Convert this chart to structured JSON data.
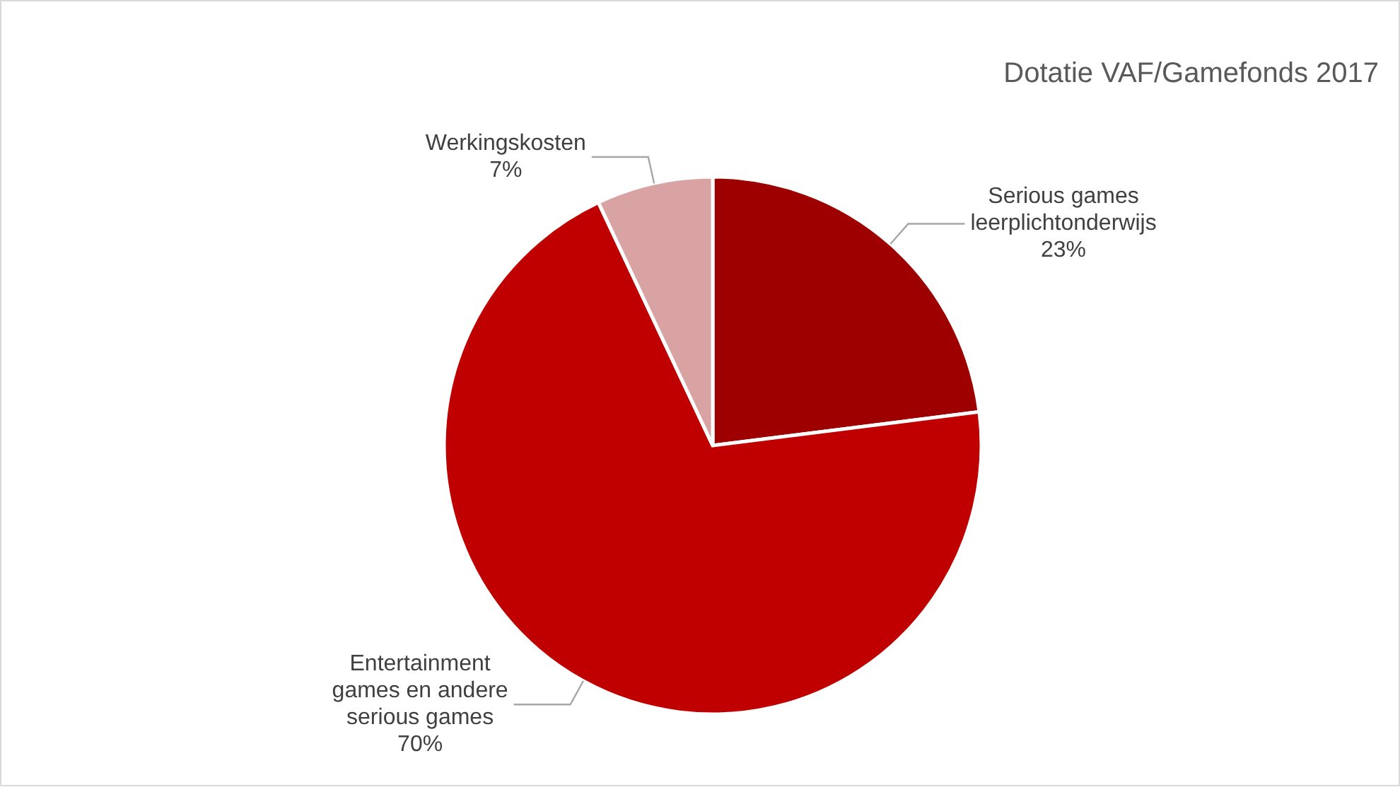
{
  "chart_data": {
    "type": "pie",
    "title": "Dotatie VAF/Gamefonds 2017",
    "categories": [
      "Serious games leerplichtonderwijs",
      "Entertainment games en andere serious games",
      "Werkingskosten"
    ],
    "values": [
      23,
      70,
      7
    ],
    "colors": [
      "#9e0000",
      "#c00000",
      "#d9a3a3"
    ],
    "value_labels": [
      "23%",
      "70%",
      "7%"
    ],
    "legend": false
  }
}
